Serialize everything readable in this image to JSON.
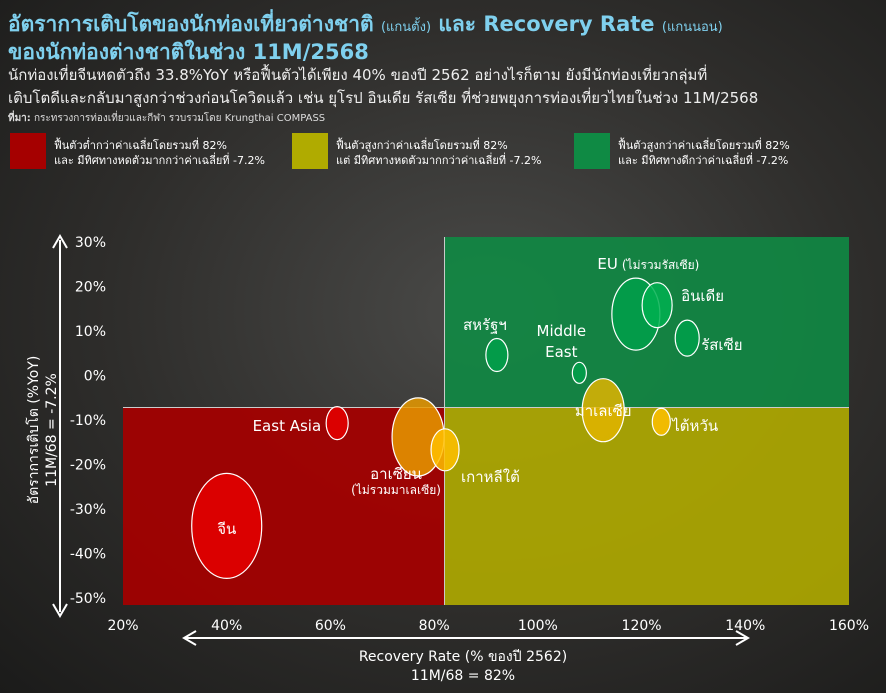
{
  "header": {
    "title_line1": "อัตราการเติบโตของนักท่องเที่ยวต่างชาติ",
    "title_note1": "(แกนตั้ง)",
    "title_mid": "และ Recovery Rate",
    "title_note2": "(แกนนอน)",
    "title_line2": "ของนักท่องต่างชาติในช่วง 11M/2568",
    "subtitle_line1": "นักท่องเที่ยจีนหดตัวถึง 33.8%YoY หรือฟื้นตัวได้เพียง 40% ของปี 2562 อย่างไรก็ตาม ยังมีนักท่องเที่ยวกลุ่มที่",
    "subtitle_line2": "เติบโตดีและกลับมาสูงกว่าช่วงก่อนโควิดแล้ว เช่น ยุโรป อินเดีย รัสเซีย ที่ช่วยพยุงการท่องเที่ยวไทยในช่วง 11M/2568",
    "source_label": "ที่มา:",
    "source_text": "กระทรวงการท่องเที่ยวและกีฬา รวบรวมโดย Krungthai COMPASS"
  },
  "legend": [
    {
      "line1": "ฟื้นตัวต่ำกว่าค่าเฉลี่ยโดยรวมที่ 82%",
      "line2": "และ มีทิศทางหดตัวมากกว่าค่าเฉลี่ยที่ -7.2%",
      "color": "#a50000"
    },
    {
      "line1": "ฟื้นตัวสูงกว่าค่าเฉลี่ยโดยรวมที่ 82%",
      "line2": "แต่ มีทิศทางหดตัวมากกว่าค่าเฉลี่ยที่ -7.2%",
      "color": "#b0ab00"
    },
    {
      "line1": "ฟื้นตัวสูงกว่าค่าเฉลี่ยโดยรวมที่ 82%",
      "line2": "และ มีทิศทางดีกว่าค่าเฉลี่ยที่ -7.2%",
      "color": "#0f8a44"
    }
  ],
  "chart_data": {
    "type": "bubble",
    "xlabel": "Recovery Rate (% ของปี 2562)",
    "xlabel_sub": "11M/68 = 82%",
    "ylabel": "อัตราการเติบโต (%YoY)",
    "ylabel_sub": "11M/68 = -7.2%",
    "xlim": [
      20,
      160
    ],
    "ylim": [
      -50,
      30
    ],
    "x_ticks": [
      "20%",
      "40%",
      "60%",
      "80%",
      "100%",
      "120%",
      "140%",
      "160%"
    ],
    "y_ticks": [
      "30%",
      "20%",
      "10%",
      "0%",
      "-10%",
      "-20%",
      "-30%",
      "-40%",
      "-50%"
    ],
    "x_avg": 82,
    "y_avg": -7.2,
    "points": [
      {
        "label": "จีน",
        "x": 40,
        "y": -33.8,
        "size": 35,
        "color": "#e60000"
      },
      {
        "label": "East Asia",
        "x": 61.3,
        "y": -10.7,
        "size": 11,
        "color": "#e60000"
      },
      {
        "label": "อาเซียน",
        "note": "(ไม่รวมมาเลเซีย)",
        "x": 76.9,
        "y": -13.8,
        "size": 26,
        "color": "#e89a00"
      },
      {
        "label": "เกาหลีใต้",
        "x": 82.1,
        "y": -16.7,
        "size": 14,
        "color": "#ffc000"
      },
      {
        "label": "สหรัฐฯ",
        "x": 92.1,
        "y": 4.6,
        "size": 11,
        "color": "#00a04a"
      },
      {
        "label": "Middle East",
        "x": 108,
        "y": 0.6,
        "size": 7,
        "color": "#00a04a"
      },
      {
        "label": "มาเลเซีย",
        "x": 112.6,
        "y": -7.8,
        "size": 21,
        "color": "#e0b400"
      },
      {
        "label": "ไต้หวัน",
        "x": 123.8,
        "y": -10.4,
        "size": 9,
        "color": "#ffc000"
      },
      {
        "label": "EU",
        "note": "(ไม่รวมรัสเซีย)",
        "x": 118.9,
        "y": 13.8,
        "size": 24,
        "color": "#00a04a"
      },
      {
        "label": "อินเดีย",
        "x": 123,
        "y": 15.8,
        "size": 15,
        "color": "#00b050"
      },
      {
        "label": "รัสเซีย",
        "x": 128.8,
        "y": 8.4,
        "size": 12,
        "color": "#00a04a"
      }
    ]
  }
}
